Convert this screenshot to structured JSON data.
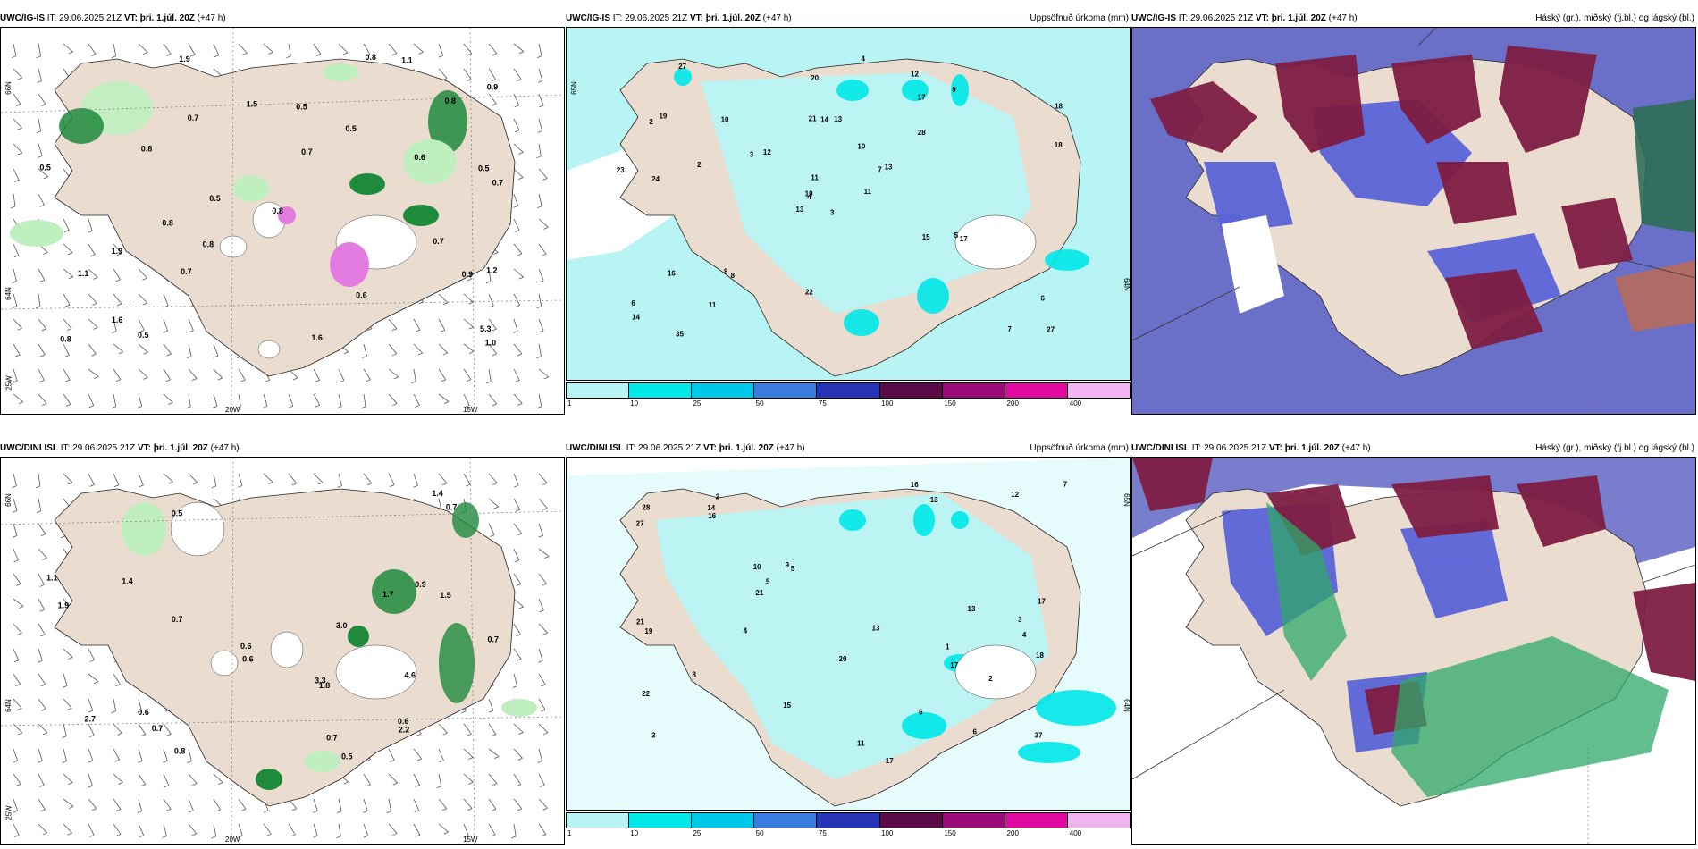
{
  "colors": {
    "land": "#eaddcf",
    "sea_snow": "#ffffff",
    "precip_light": "#b8f4f4",
    "precip_mid": "#00e8e8",
    "green_light": "#bfefbf",
    "green_dark": "#0d6b2c",
    "cloud_low": "#5a63d6",
    "cloud_mid": "#7e1d43",
    "cloud_high": "#2fa86a",
    "cloud_dark_sea": "#6a6fc8"
  },
  "panels": [
    {
      "id": "top-left",
      "model": "UWC/IG-IS",
      "it_label": "IT:",
      "it_value": "29.06.2025 21Z",
      "vt_label": "VT:",
      "vt_value": "þri. 1.júl. 20Z",
      "lead": "(+47 h)",
      "right_title": "",
      "axis": {
        "bottom": [
          "20W",
          "15W"
        ],
        "left": [
          "66N",
          "64N",
          "25W"
        ]
      },
      "values": [
        "0.7",
        "0.5",
        "0.5",
        "0.7",
        "0.5",
        "1.2",
        "0.8",
        "0.8",
        "0.9",
        "0.8",
        "0.8",
        "0.7",
        "0.6",
        "0.7",
        "1.1",
        "0.8",
        "0.8",
        "0.5",
        "1.9",
        "1.5",
        "5.3",
        "0.5",
        "1.6",
        "1.9",
        "0.7",
        "1.1",
        "0.8",
        "0.6",
        "1.6",
        "0.9",
        "0.5",
        "1.0"
      ]
    },
    {
      "id": "top-mid",
      "model": "UWC/IG-IS",
      "it_label": "IT:",
      "it_value": "29.06.2025 21Z",
      "vt_label": "VT:",
      "vt_value": "þri. 1.júl. 20Z",
      "lead": "(+47 h)",
      "right_title": "Uppsöfnuð úrkoma (mm)",
      "axis": {
        "bottom": [],
        "left": [
          "65N"
        ],
        "right": [
          "64N"
        ]
      },
      "values": [
        "3",
        "2",
        "4",
        "6",
        "7",
        "8",
        "12",
        "13",
        "17",
        "11",
        "27",
        "27",
        "24",
        "18",
        "13",
        "28",
        "35",
        "21",
        "10",
        "16",
        "12",
        "14",
        "11",
        "14",
        "13",
        "17",
        "19",
        "20",
        "23",
        "15",
        "18",
        "19",
        "22",
        "11",
        "10",
        "9",
        "8",
        "7",
        "6",
        "5",
        "4",
        "3",
        "2"
      ]
    },
    {
      "id": "top-right",
      "model": "UWC/IG-IS",
      "it_label": "IT:",
      "it_value": "29.06.2025 21Z",
      "vt_label": "VT:",
      "vt_value": "þri. 1.júl. 20Z",
      "lead": "(+47 h)",
      "right_title": "Háský (gr.), miðský (fj.bl.) og lágský (bl.)"
    },
    {
      "id": "bot-left",
      "model": "UWC/DINI ISL",
      "it_label": "IT:",
      "it_value": "29.06.2025 21Z",
      "vt_label": "VT:",
      "vt_value": "þri. 1.júl. 20Z",
      "lead": "(+47 h)",
      "right_title": "",
      "axis": {
        "bottom": [
          "20W",
          "15W"
        ],
        "left": [
          "66N",
          "64N",
          "25W"
        ]
      },
      "values": [
        "0.5",
        "0.5",
        "0.6",
        "1.4",
        "0.9",
        "0.7",
        "0.7",
        "0.7",
        "0.6",
        "0.7",
        "2.7",
        "1.1",
        "0.6",
        "3.3",
        "1.7",
        "1.4",
        "1.9",
        "0.7",
        "4.6",
        "1.5",
        "0.6",
        "1.8",
        "0.8",
        "2.2",
        "3.0"
      ]
    },
    {
      "id": "bot-mid",
      "model": "UWC/DINI ISL",
      "it_label": "IT:",
      "it_value": "29.06.2025 21Z",
      "vt_label": "VT:",
      "vt_value": "þri. 1.júl. 20Z",
      "lead": "(+47 h)",
      "right_title": "Uppsöfnuð úrkoma (mm)",
      "axis": {
        "bottom": [],
        "left": [],
        "right": [
          "65N",
          "64N"
        ]
      },
      "values": [
        "1",
        "4",
        "3",
        "2",
        "5",
        "6",
        "22",
        "13",
        "10",
        "17",
        "27",
        "21",
        "28",
        "37",
        "15",
        "17",
        "20",
        "13",
        "9",
        "8",
        "7",
        "12",
        "21",
        "18",
        "16",
        "14",
        "17",
        "19",
        "16",
        "13",
        "11",
        "6",
        "5",
        "4",
        "3",
        "2"
      ]
    },
    {
      "id": "bot-right",
      "model": "UWC/DINI ISL",
      "it_label": "IT:",
      "it_value": "29.06.2025 21Z",
      "vt_label": "VT:",
      "vt_value": "þri. 1.júl. 20Z",
      "lead": "(+47 h)",
      "right_title": "Háský (gr.), miðský (fj.bl.) og lágský (bl.)"
    }
  ],
  "legend": {
    "ticks": [
      "1",
      "10",
      "25",
      "50",
      "75",
      "100",
      "150",
      "200",
      "400"
    ],
    "colors": [
      "#b8f4f4",
      "#00e8e8",
      "#00c8e8",
      "#3a7be0",
      "#2832b4",
      "#5a0a46",
      "#9a0a78",
      "#e00aa0",
      "#f0b4f0"
    ]
  }
}
